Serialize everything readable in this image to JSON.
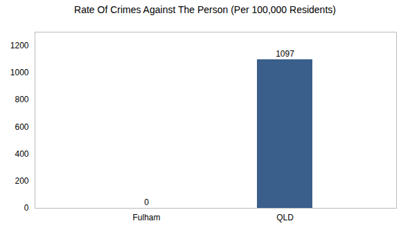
{
  "chart_data": {
    "type": "bar",
    "title": "Rate Of Crimes Against The Person (Per 100,000 Residents)",
    "categories": [
      "Fulham",
      "QLD"
    ],
    "values": [
      0,
      1097
    ],
    "color": "#3a5f8a",
    "ylim": [
      0,
      1300
    ],
    "yticks": [
      0,
      200,
      400,
      600,
      800,
      1000,
      1200
    ],
    "grid": false,
    "data_labels": true
  }
}
